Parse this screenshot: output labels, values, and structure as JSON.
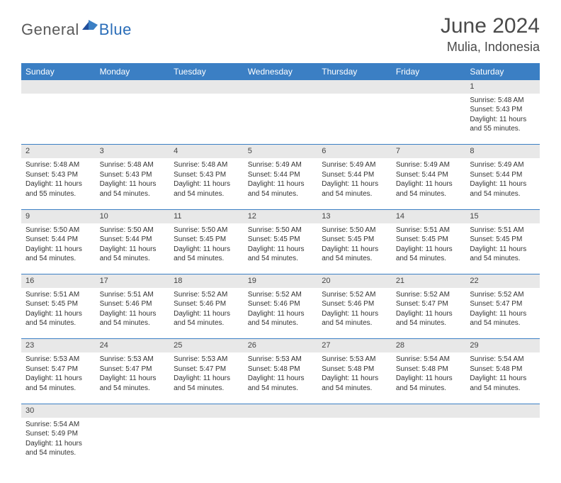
{
  "logo": {
    "text1": "General",
    "text2": "Blue"
  },
  "title": "June 2024",
  "location": "Mulia, Indonesia",
  "colors": {
    "header_bg": "#3b7fc4",
    "header_text": "#ffffff",
    "daynum_bg": "#e8e8e8",
    "cell_border": "#3b7fc4",
    "text": "#333333",
    "title_text": "#4a4a4a",
    "logo_gray": "#5a5a5a",
    "logo_blue": "#2a6db8"
  },
  "day_headers": [
    "Sunday",
    "Monday",
    "Tuesday",
    "Wednesday",
    "Thursday",
    "Friday",
    "Saturday"
  ],
  "weeks": [
    [
      null,
      null,
      null,
      null,
      null,
      null,
      {
        "n": "1",
        "sr": "Sunrise: 5:48 AM",
        "ss": "Sunset: 5:43 PM",
        "dl": "Daylight: 11 hours and 55 minutes."
      }
    ],
    [
      {
        "n": "2",
        "sr": "Sunrise: 5:48 AM",
        "ss": "Sunset: 5:43 PM",
        "dl": "Daylight: 11 hours and 55 minutes."
      },
      {
        "n": "3",
        "sr": "Sunrise: 5:48 AM",
        "ss": "Sunset: 5:43 PM",
        "dl": "Daylight: 11 hours and 54 minutes."
      },
      {
        "n": "4",
        "sr": "Sunrise: 5:48 AM",
        "ss": "Sunset: 5:43 PM",
        "dl": "Daylight: 11 hours and 54 minutes."
      },
      {
        "n": "5",
        "sr": "Sunrise: 5:49 AM",
        "ss": "Sunset: 5:44 PM",
        "dl": "Daylight: 11 hours and 54 minutes."
      },
      {
        "n": "6",
        "sr": "Sunrise: 5:49 AM",
        "ss": "Sunset: 5:44 PM",
        "dl": "Daylight: 11 hours and 54 minutes."
      },
      {
        "n": "7",
        "sr": "Sunrise: 5:49 AM",
        "ss": "Sunset: 5:44 PM",
        "dl": "Daylight: 11 hours and 54 minutes."
      },
      {
        "n": "8",
        "sr": "Sunrise: 5:49 AM",
        "ss": "Sunset: 5:44 PM",
        "dl": "Daylight: 11 hours and 54 minutes."
      }
    ],
    [
      {
        "n": "9",
        "sr": "Sunrise: 5:50 AM",
        "ss": "Sunset: 5:44 PM",
        "dl": "Daylight: 11 hours and 54 minutes."
      },
      {
        "n": "10",
        "sr": "Sunrise: 5:50 AM",
        "ss": "Sunset: 5:44 PM",
        "dl": "Daylight: 11 hours and 54 minutes."
      },
      {
        "n": "11",
        "sr": "Sunrise: 5:50 AM",
        "ss": "Sunset: 5:45 PM",
        "dl": "Daylight: 11 hours and 54 minutes."
      },
      {
        "n": "12",
        "sr": "Sunrise: 5:50 AM",
        "ss": "Sunset: 5:45 PM",
        "dl": "Daylight: 11 hours and 54 minutes."
      },
      {
        "n": "13",
        "sr": "Sunrise: 5:50 AM",
        "ss": "Sunset: 5:45 PM",
        "dl": "Daylight: 11 hours and 54 minutes."
      },
      {
        "n": "14",
        "sr": "Sunrise: 5:51 AM",
        "ss": "Sunset: 5:45 PM",
        "dl": "Daylight: 11 hours and 54 minutes."
      },
      {
        "n": "15",
        "sr": "Sunrise: 5:51 AM",
        "ss": "Sunset: 5:45 PM",
        "dl": "Daylight: 11 hours and 54 minutes."
      }
    ],
    [
      {
        "n": "16",
        "sr": "Sunrise: 5:51 AM",
        "ss": "Sunset: 5:45 PM",
        "dl": "Daylight: 11 hours and 54 minutes."
      },
      {
        "n": "17",
        "sr": "Sunrise: 5:51 AM",
        "ss": "Sunset: 5:46 PM",
        "dl": "Daylight: 11 hours and 54 minutes."
      },
      {
        "n": "18",
        "sr": "Sunrise: 5:52 AM",
        "ss": "Sunset: 5:46 PM",
        "dl": "Daylight: 11 hours and 54 minutes."
      },
      {
        "n": "19",
        "sr": "Sunrise: 5:52 AM",
        "ss": "Sunset: 5:46 PM",
        "dl": "Daylight: 11 hours and 54 minutes."
      },
      {
        "n": "20",
        "sr": "Sunrise: 5:52 AM",
        "ss": "Sunset: 5:46 PM",
        "dl": "Daylight: 11 hours and 54 minutes."
      },
      {
        "n": "21",
        "sr": "Sunrise: 5:52 AM",
        "ss": "Sunset: 5:47 PM",
        "dl": "Daylight: 11 hours and 54 minutes."
      },
      {
        "n": "22",
        "sr": "Sunrise: 5:52 AM",
        "ss": "Sunset: 5:47 PM",
        "dl": "Daylight: 11 hours and 54 minutes."
      }
    ],
    [
      {
        "n": "23",
        "sr": "Sunrise: 5:53 AM",
        "ss": "Sunset: 5:47 PM",
        "dl": "Daylight: 11 hours and 54 minutes."
      },
      {
        "n": "24",
        "sr": "Sunrise: 5:53 AM",
        "ss": "Sunset: 5:47 PM",
        "dl": "Daylight: 11 hours and 54 minutes."
      },
      {
        "n": "25",
        "sr": "Sunrise: 5:53 AM",
        "ss": "Sunset: 5:47 PM",
        "dl": "Daylight: 11 hours and 54 minutes."
      },
      {
        "n": "26",
        "sr": "Sunrise: 5:53 AM",
        "ss": "Sunset: 5:48 PM",
        "dl": "Daylight: 11 hours and 54 minutes."
      },
      {
        "n": "27",
        "sr": "Sunrise: 5:53 AM",
        "ss": "Sunset: 5:48 PM",
        "dl": "Daylight: 11 hours and 54 minutes."
      },
      {
        "n": "28",
        "sr": "Sunrise: 5:54 AM",
        "ss": "Sunset: 5:48 PM",
        "dl": "Daylight: 11 hours and 54 minutes."
      },
      {
        "n": "29",
        "sr": "Sunrise: 5:54 AM",
        "ss": "Sunset: 5:48 PM",
        "dl": "Daylight: 11 hours and 54 minutes."
      }
    ],
    [
      {
        "n": "30",
        "sr": "Sunrise: 5:54 AM",
        "ss": "Sunset: 5:49 PM",
        "dl": "Daylight: 11 hours and 54 minutes."
      },
      null,
      null,
      null,
      null,
      null,
      null
    ]
  ]
}
